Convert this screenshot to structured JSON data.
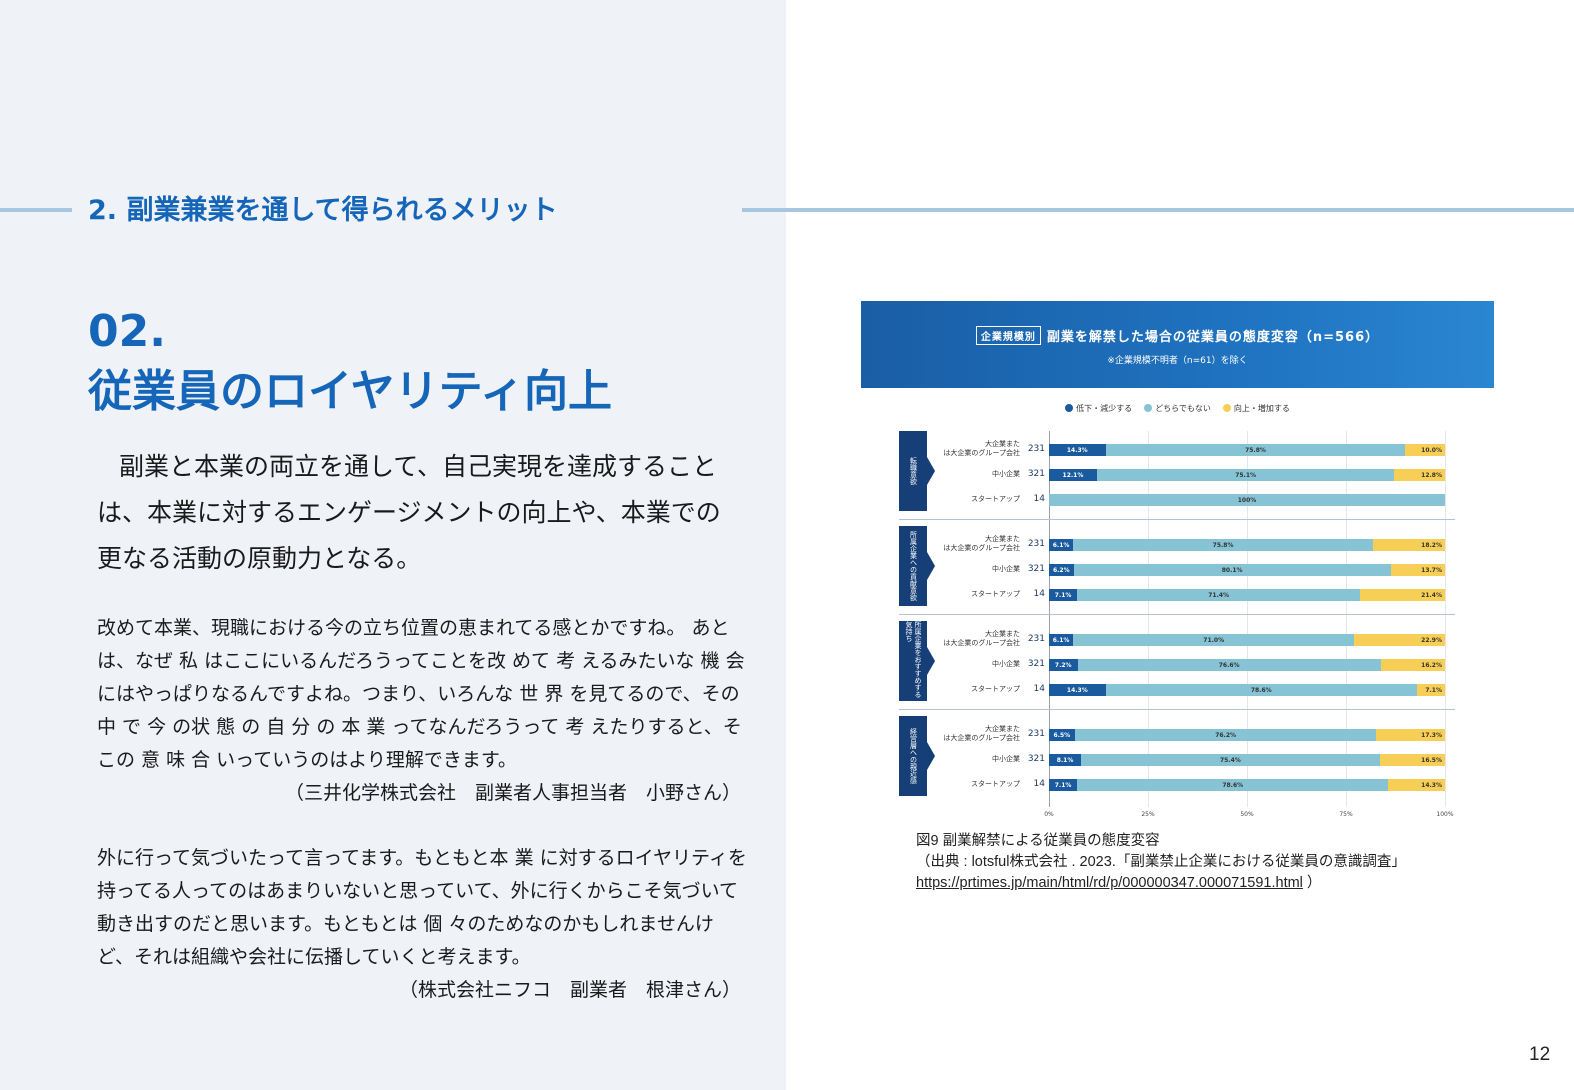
{
  "section": {
    "heading": "2. 副業兼業を通して得られるメリット"
  },
  "article": {
    "number": "02.",
    "title": "従業員のロイヤリティ向上",
    "lead": "副業と本業の両立を通して、自己実現を達成することは、本業に対するエンゲージメントの向上や、本業での更なる活動の原動力となる。",
    "quotes": [
      {
        "text": "改めて本業、現職における今の立ち位置の恵まれてる感とかですね。 あとは、なぜ 私 はここにいるんだろうってことを改 めて 考 えるみたいな 機 会 にはやっぱりなるんですよね。つまり、いろんな 世 界 を見てるので、その 中 で 今 の状 態 の 自 分 の 本 業 ってなんだろうって 考 えたりすると、そこの 意 味 合 いっていうのはより理解できます。",
        "attribution": "（三井化学株式会社　副業者人事担当者　小野さん）"
      },
      {
        "text": "外に行って気づいたって言ってます。もともと本 業 に対するロイヤリティを持ってる人ってのはあまりいないと思っていて、外に行くからこそ気づいて動き出すのだと思います。もともとは 個 々のためなのかもしれませんけど、それは組織や会社に伝播していくと考えます。",
        "attribution": "（株式会社ニフコ　副業者　根津さん）"
      }
    ]
  },
  "figure": {
    "caption_title": "図9 副業解禁による従業員の態度変容",
    "caption_source": "（出典 : lotsful株式会社 . 2023.「副業禁止企業における従業員の意識調査」",
    "caption_link": "https://prtimes.jp/main/html/rd/p/000000347.000071591.html",
    "caption_close": " ）"
  },
  "chart_data": {
    "type": "bar",
    "orientation": "horizontal-stacked-100",
    "title": "副業を解禁した場合の従業員の態度変容（n=566）",
    "tag": "企業規模別",
    "subtitle": "※企業規模不明者（n=61）を除く",
    "legend": [
      {
        "name": "低下・減少する",
        "color": "#1a5a9e"
      },
      {
        "name": "どちらでもない",
        "color": "#86c3d4"
      },
      {
        "name": "向上・増加する",
        "color": "#f8cf56"
      }
    ],
    "x_ticks": [
      "0%",
      "25%",
      "50%",
      "75%",
      "100%"
    ],
    "xlim": [
      0,
      100
    ],
    "groups": [
      {
        "label": "転職意欲",
        "rows": [
          {
            "category": "大企業または大企業のグループ会社",
            "n": 231,
            "values": [
              14.3,
              75.8,
              10.0
            ]
          },
          {
            "category": "中小企業",
            "n": 321,
            "values": [
              12.1,
              75.1,
              12.8
            ]
          },
          {
            "category": "スタートアップ",
            "n": 14,
            "values": [
              0,
              100,
              0
            ]
          }
        ]
      },
      {
        "label": "所属企業への貢献意欲",
        "rows": [
          {
            "category": "大企業または大企業のグループ会社",
            "n": 231,
            "values": [
              6.1,
              75.8,
              18.2
            ]
          },
          {
            "category": "中小企業",
            "n": 321,
            "values": [
              6.2,
              80.1,
              13.7
            ]
          },
          {
            "category": "スタートアップ",
            "n": 14,
            "values": [
              7.1,
              71.4,
              21.4
            ]
          }
        ]
      },
      {
        "label": "所属企業をおすすめする気持ち",
        "rows": [
          {
            "category": "大企業または大企業のグループ会社",
            "n": 231,
            "values": [
              6.1,
              71.0,
              22.9
            ]
          },
          {
            "category": "中小企業",
            "n": 321,
            "values": [
              7.2,
              76.6,
              16.2
            ]
          },
          {
            "category": "スタートアップ",
            "n": 14,
            "values": [
              14.3,
              78.6,
              7.1
            ]
          }
        ]
      },
      {
        "label": "経営層への親近感",
        "rows": [
          {
            "category": "大企業または大企業のグループ会社",
            "n": 231,
            "values": [
              6.5,
              76.2,
              17.3
            ]
          },
          {
            "category": "中小企業",
            "n": 321,
            "values": [
              8.1,
              75.4,
              16.5
            ]
          },
          {
            "category": "スタートアップ",
            "n": 14,
            "values": [
              7.1,
              78.6,
              14.3
            ]
          }
        ]
      }
    ]
  },
  "page": {
    "number": "12"
  }
}
